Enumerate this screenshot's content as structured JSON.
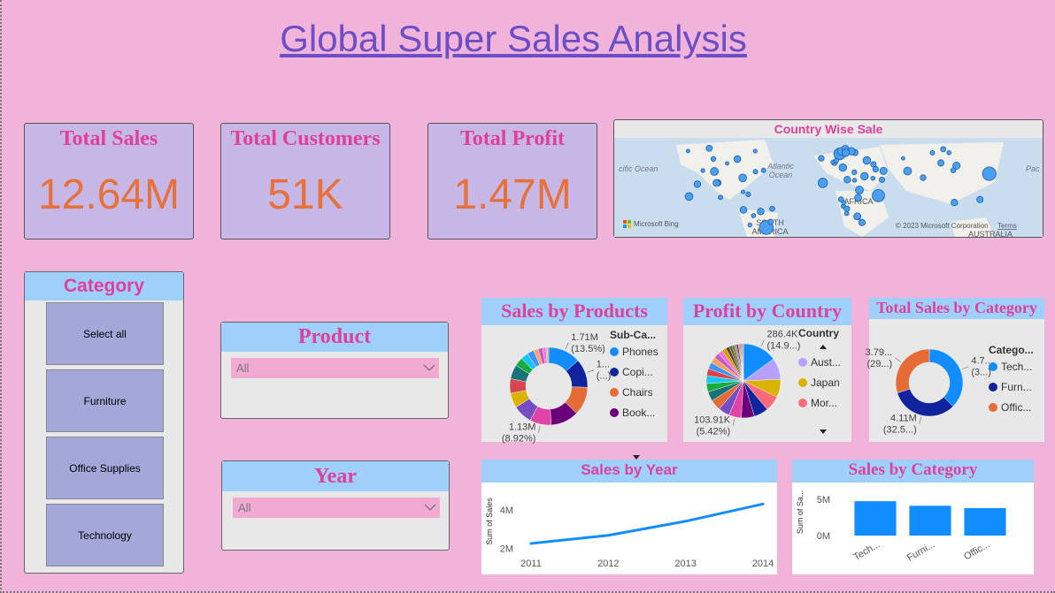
{
  "header": {
    "title": "Global Super Sales Analysis"
  },
  "cards": [
    {
      "title": "Total Sales",
      "value": "12.64M"
    },
    {
      "title": "Total Customers",
      "value": "51K"
    },
    {
      "title": "Total Profit",
      "value": "1.47M"
    }
  ],
  "map": {
    "title": "Country Wise Sale",
    "labels": [
      "cific Ocean",
      "Atlantic",
      "Ocean",
      "AFRICA",
      "SOUTH",
      "AMERICA",
      "Microsoft Bing",
      "© 2023 Microsoft Corporation",
      "Terms",
      "AUSTRALIA",
      "Pac"
    ]
  },
  "slicers": {
    "category": {
      "title": "Category",
      "items": [
        "Select all",
        "Furniture",
        "Office Supplies",
        "Technology"
      ]
    },
    "product": {
      "title": "Product",
      "selected": "All"
    },
    "year": {
      "title": "Year",
      "selected": "All"
    }
  },
  "chart_data": [
    {
      "type": "donut",
      "title": "Sales by Products",
      "legend_title": "Sub-Ca...",
      "categories": [
        "Phones",
        "Copi...",
        "Chairs",
        "Book...",
        null,
        null,
        null,
        null,
        null,
        null,
        null,
        null,
        null,
        null,
        null,
        null,
        null
      ],
      "values": [
        1.71,
        1.51,
        1.5,
        1.47,
        1.13,
        1.01,
        0.78,
        0.76,
        0.75,
        0.46,
        0.39,
        0.37,
        0.24,
        0.24,
        0.17,
        0.08,
        0.07
      ],
      "value_labels": [
        "1.71M",
        "1...",
        null,
        null,
        "1.13M",
        null,
        null,
        null,
        null,
        null,
        null,
        null,
        null,
        null,
        null,
        null,
        null
      ],
      "percent_labels": [
        "(13.5%)",
        "(...)",
        null,
        null,
        "(8.92%)",
        null,
        null,
        null,
        null,
        null,
        null,
        null,
        null,
        null,
        null,
        null,
        null
      ],
      "colors": [
        "#118DFF",
        "#12239E",
        "#E66C37",
        "#6B007B",
        "#E044A7",
        "#744EC2",
        "#D9B300",
        "#D64550",
        "#197278",
        "#1AAB40",
        "#15C6F4",
        "#4092FF",
        "#FFA058",
        "#BE5DC9",
        "#F472D0",
        "#B5A1FF",
        "#C4A200"
      ]
    },
    {
      "type": "pie",
      "title": "Profit by Country",
      "legend_title": "Country",
      "categories": [
        null,
        "Aust...",
        "Japan",
        "Mor...",
        null,
        null,
        null,
        null,
        null,
        null,
        null,
        null,
        null,
        null,
        null,
        null,
        null,
        null,
        null,
        null,
        null,
        null,
        null,
        null,
        null,
        null,
        null,
        null
      ],
      "values": [
        286.4,
        180,
        150,
        130,
        120,
        110,
        103.91,
        95,
        90,
        80,
        70,
        65,
        60,
        55,
        50,
        45,
        40,
        35,
        30,
        25,
        20,
        18,
        15,
        12,
        10,
        8,
        7,
        6
      ],
      "value_labels": [
        "286.4K",
        null,
        null,
        null,
        null,
        null,
        "103.91K",
        null,
        null,
        null,
        null,
        null,
        null,
        null,
        null,
        null,
        null,
        null,
        null,
        null,
        null,
        null,
        null,
        null,
        null,
        null,
        null,
        null
      ],
      "percent_labels": [
        "(14.9...)",
        null,
        null,
        null,
        null,
        null,
        "(5.42%)",
        null,
        null,
        null,
        null,
        null,
        null,
        null,
        null,
        null,
        null,
        null,
        null,
        null,
        null,
        null,
        null,
        null,
        null,
        null,
        null,
        null
      ],
      "colors": [
        "#118DFF",
        "#B5A1FF",
        "#D9B300",
        "#FF6B7A",
        "#12239E",
        "#6B007B",
        "#E044A7",
        "#744EC2",
        "#E66C37",
        "#197278",
        "#1AAB40",
        "#15C6F4",
        "#D64550",
        "#4092FF",
        "#FFA058",
        "#BE5DC9",
        "#F472D0",
        "#C4A200",
        "#7F312F",
        "#2C7D2C",
        "#A0522D",
        "#5F9EA0",
        "#8B008B",
        "#DAA520",
        "#708090",
        "#556B2F",
        "#CD5C5C",
        "#483D8B"
      ]
    },
    {
      "type": "donut",
      "title": "Total Sales by Category",
      "legend_title": "Catego...",
      "categories": [
        "Tech...",
        "Furn...",
        "Offic..."
      ],
      "values": [
        4.74,
        4.11,
        3.79
      ],
      "value_labels": [
        "4.7...",
        "4.11M",
        "3.79..."
      ],
      "percent_labels": [
        "(3...)",
        "(32.5...)",
        "(29...)"
      ],
      "colors": [
        "#118DFF",
        "#12239E",
        "#E66C37"
      ]
    },
    {
      "type": "line",
      "title": "Sales by Year",
      "ylabel": "Sum of Sales",
      "x": [
        2011,
        2012,
        2013,
        2014
      ],
      "values": [
        2.26,
        2.68,
        3.41,
        4.3
      ],
      "xlim": [
        2011,
        2014
      ],
      "xticks": [
        2011,
        2012,
        2013,
        2014
      ],
      "ylim": [
        1.8,
        5.0
      ],
      "yticks": [
        {
          "value": 2,
          "label": "2M"
        },
        {
          "value": 4,
          "label": "4M"
        }
      ],
      "color": "#118DFF"
    },
    {
      "type": "bar",
      "title": "Sales by Category",
      "ylabel": "Sum of Sa...",
      "categories": [
        "Tech...",
        "Furni...",
        "Offic..."
      ],
      "values": [
        4.74,
        4.11,
        3.79
      ],
      "ylim": [
        0,
        6.5
      ],
      "yticks": [
        {
          "value": 0,
          "label": "0M"
        },
        {
          "value": 5,
          "label": "5M"
        }
      ],
      "color": "#118DFF"
    }
  ]
}
